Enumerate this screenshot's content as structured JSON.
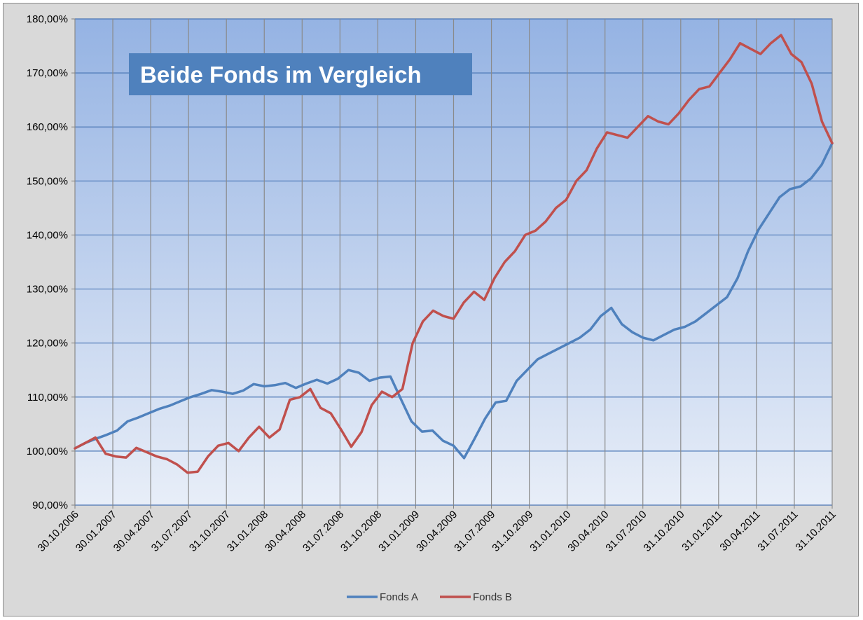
{
  "chart_data": {
    "type": "line",
    "title": "Beide Fonds im Vergleich",
    "xlabel": "",
    "ylabel": "",
    "ylim": [
      90,
      180
    ],
    "y_ticks": [
      "90,00%",
      "100,00%",
      "110,00%",
      "120,00%",
      "130,00%",
      "140,00%",
      "150,00%",
      "160,00%",
      "170,00%",
      "180,00%"
    ],
    "x_ticks": [
      "30.10.2006",
      "30.01.2007",
      "30.04.2007",
      "31.07.2007",
      "31.10.2007",
      "31.01.2008",
      "30.04.2008",
      "31.07.2008",
      "31.10.2008",
      "31.01.2009",
      "30.04.2009",
      "31.07.2009",
      "31.10.2009",
      "31.01.2010",
      "30.04.2010",
      "31.07.2010",
      "31.10.2010",
      "31.01.2011",
      "30.04.2011",
      "31.07.2011",
      "31.10.2011"
    ],
    "grid": true,
    "legend_position": "bottom",
    "series": [
      {
        "name": "Fonds A",
        "color": "#4f81bd",
        "values": [
          100.5,
          101.5,
          102.3,
          103.0,
          103.8,
          105.5,
          106.2,
          107.0,
          107.8,
          108.4,
          109.2,
          110.0,
          110.6,
          111.3,
          111.0,
          110.6,
          111.2,
          112.4,
          112.0,
          112.2,
          112.6,
          111.7,
          112.5,
          113.2,
          112.5,
          113.4,
          115.0,
          114.5,
          113.0,
          113.6,
          113.8,
          109.6,
          105.5,
          103.6,
          103.8,
          101.9,
          101.0,
          98.7,
          102.3,
          106.0,
          109.0,
          109.3,
          113.0,
          115.0,
          117.0,
          118.0,
          119.0,
          120.0,
          121.0,
          122.5,
          125.0,
          126.5,
          123.5,
          122.0,
          121.0,
          120.5,
          121.5,
          122.5,
          123.0,
          124.0,
          125.5,
          127.0,
          128.5,
          132.0,
          137.0,
          141.0,
          144.0,
          147.0,
          148.5,
          149.0,
          150.5,
          153.0,
          157.0
        ]
      },
      {
        "name": "Fonds B",
        "color": "#c0504d",
        "values": [
          100.5,
          101.5,
          102.5,
          99.5,
          99.0,
          98.8,
          100.6,
          99.8,
          99.0,
          98.5,
          97.5,
          96.0,
          96.2,
          99.0,
          101.0,
          101.5,
          100.0,
          102.5,
          104.5,
          102.5,
          104.0,
          109.5,
          110.0,
          111.5,
          108.0,
          107.0,
          104.0,
          100.8,
          103.5,
          108.5,
          111.0,
          110.0,
          111.5,
          120.0,
          124.0,
          126.0,
          125.0,
          124.5,
          127.5,
          129.5,
          128.0,
          132.0,
          135.0,
          137.0,
          140.0,
          140.8,
          142.5,
          145.0,
          146.5,
          150.0,
          152.0,
          156.0,
          159.0,
          158.5,
          158.0,
          160.0,
          162.0,
          161.0,
          160.5,
          162.5,
          165.0,
          167.0,
          167.5,
          170.0,
          172.5,
          175.5,
          174.5,
          173.5,
          175.5,
          177.0,
          173.5,
          172.0,
          168.0,
          161.0,
          157.0
        ]
      }
    ]
  }
}
